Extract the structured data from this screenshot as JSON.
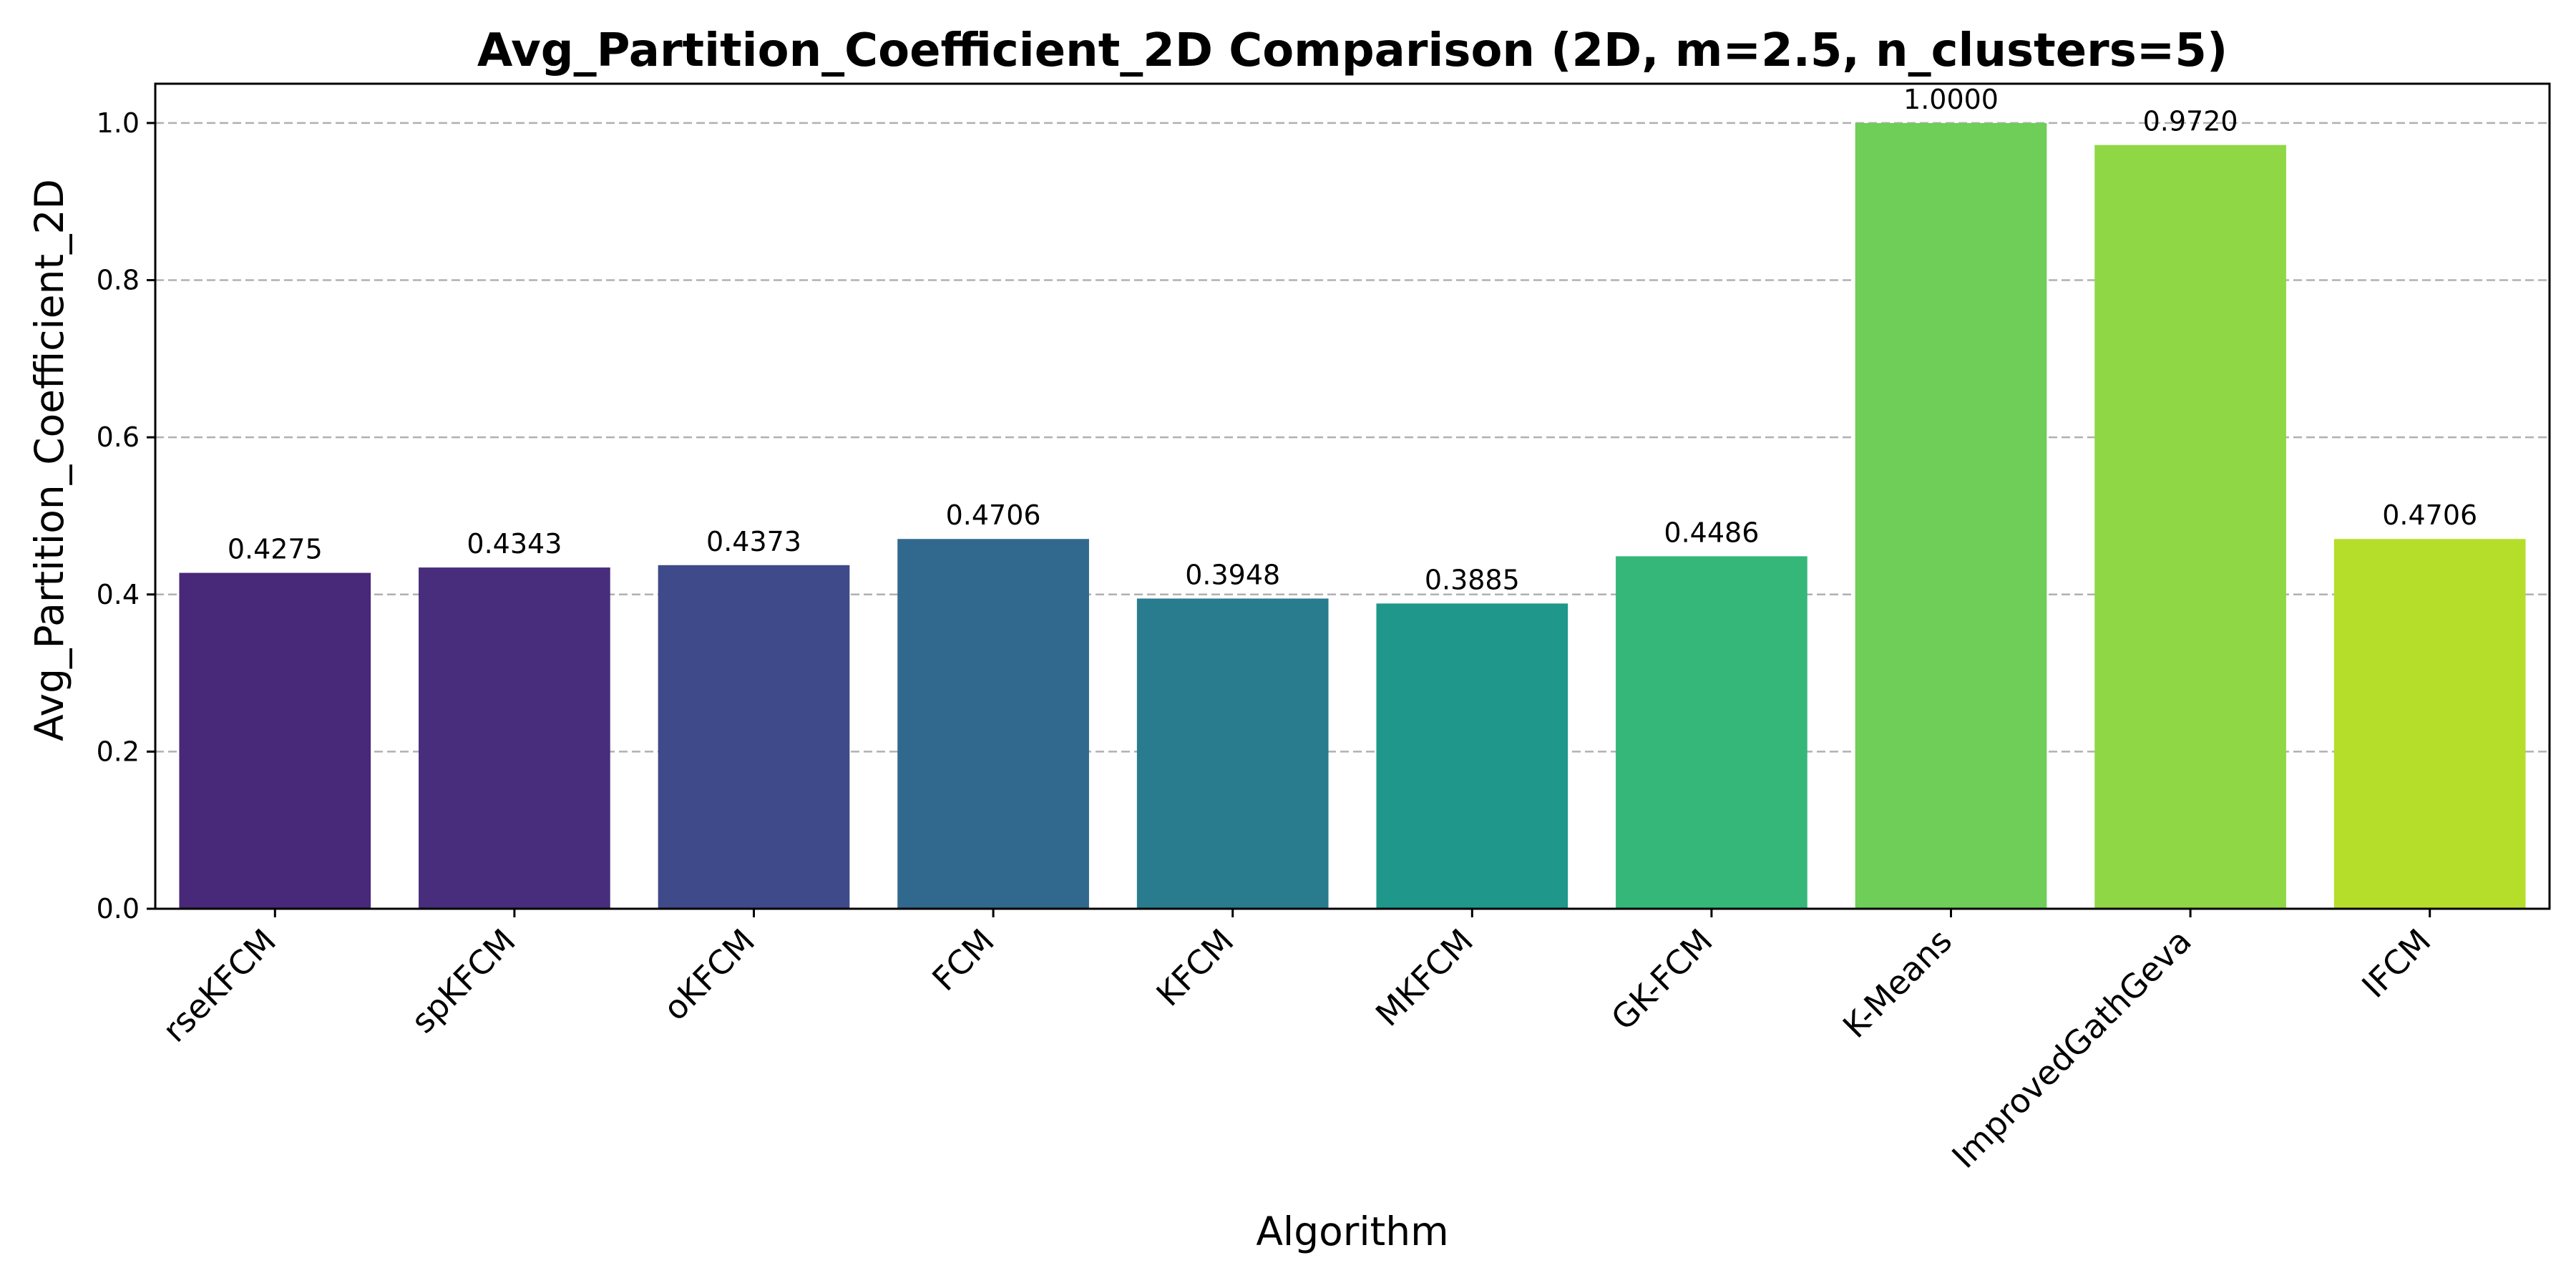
{
  "chart_data": {
    "type": "bar",
    "title": "Avg_Partition_Coefficient_2D Comparison (2D, m=2.5, n_clusters=5)",
    "xlabel": "Algorithm",
    "ylabel": "Avg_Partition_Coefficient_2D",
    "categories": [
      "rseKFCM",
      "spKFCM",
      "oKFCM",
      "FCM",
      "KFCM",
      "MKFCM",
      "GK-FCM",
      "K-Means",
      "ImprovedGathGeva",
      "IFCM"
    ],
    "values": [
      0.4275,
      0.4343,
      0.4373,
      0.4706,
      0.3948,
      0.3885,
      0.4486,
      1.0,
      0.972,
      0.4706
    ],
    "value_labels": [
      "0.4275",
      "0.4343",
      "0.4373",
      "0.4706",
      "0.3948",
      "0.3885",
      "0.4486",
      "1.0000",
      "0.9720",
      "0.4706"
    ],
    "colors": [
      "#482878",
      "#472d7b",
      "#3e4a89",
      "#31688e",
      "#287c8e",
      "#1f988b",
      "#35b779",
      "#6ece58",
      "#8fd744",
      "#b5de2b"
    ],
    "ylim": [
      0,
      1.05
    ],
    "yticks": [
      0.0,
      0.2,
      0.4,
      0.6,
      0.8,
      1.0
    ],
    "ytick_labels": [
      "0.0",
      "0.2",
      "0.4",
      "0.6",
      "0.8",
      "1.0"
    ],
    "grid": "y-dashed",
    "legend": "none"
  }
}
